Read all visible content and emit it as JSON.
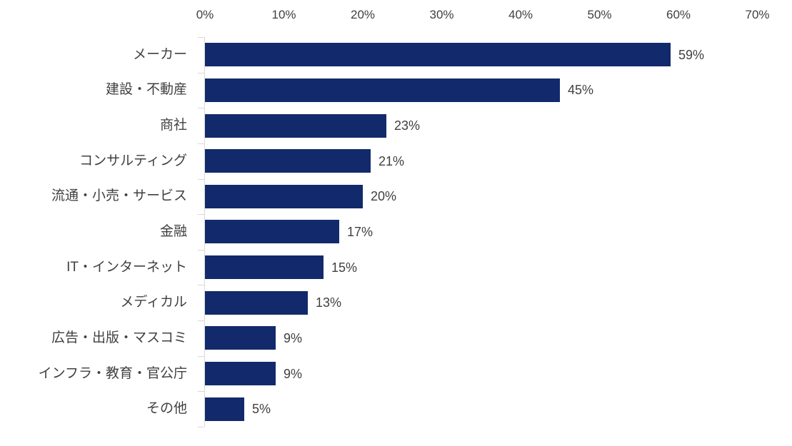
{
  "chart_data": {
    "type": "bar",
    "orientation": "horizontal",
    "title": "",
    "xlabel": "",
    "ylabel": "",
    "categories": [
      "メーカー",
      "建設・不動産",
      "商社",
      "コンサルティング",
      "流通・小売・サービス",
      "金融",
      "IT・インターネット",
      "メディカル",
      "広告・出版・マスコミ",
      "インフラ・教育・官公庁",
      "その他"
    ],
    "values": [
      59,
      45,
      23,
      21,
      20,
      17,
      15,
      13,
      9,
      9,
      5
    ],
    "value_labels": [
      "59%",
      "45%",
      "23%",
      "21%",
      "20%",
      "17%",
      "15%",
      "13%",
      "9%",
      "9%",
      "5%"
    ],
    "x_axis": {
      "position": "top",
      "min": 0,
      "max": 70,
      "tick_step": 10,
      "tick_labels": [
        "0%",
        "10%",
        "20%",
        "30%",
        "40%",
        "50%",
        "60%",
        "70%"
      ]
    },
    "grid": false,
    "legend": false,
    "colors": {
      "bar": "#122a6b",
      "axis_line": "#d9d9d9",
      "text": "#404040",
      "background": "#ffffff"
    }
  }
}
